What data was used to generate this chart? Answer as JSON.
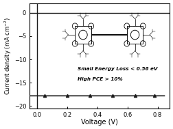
{
  "title": "",
  "xlabel": "Voltage (V)",
  "ylabel": "Current density (mA cm$^{-2}$)",
  "xlim": [
    -0.05,
    0.88
  ],
  "ylim": [
    -20.5,
    2.0
  ],
  "xticks": [
    0.0,
    0.2,
    0.4,
    0.6,
    0.8
  ],
  "yticks": [
    0,
    -5,
    -10,
    -15,
    -20
  ],
  "jsc": -17.8,
  "voc": 0.845,
  "line_color": "#1a1a1a",
  "marker_color": "#1a1a1a",
  "text1": "Small Energy Loss < 0.56 eV",
  "text2": "High PCE > 10%",
  "background_color": "#ffffff",
  "figsize": [
    2.52,
    1.89
  ],
  "dpi": 100,
  "marker_V": [
    0.05,
    0.2,
    0.35,
    0.5,
    0.65,
    0.78
  ],
  "J0": 2e-11,
  "n_ideality": 1.7
}
